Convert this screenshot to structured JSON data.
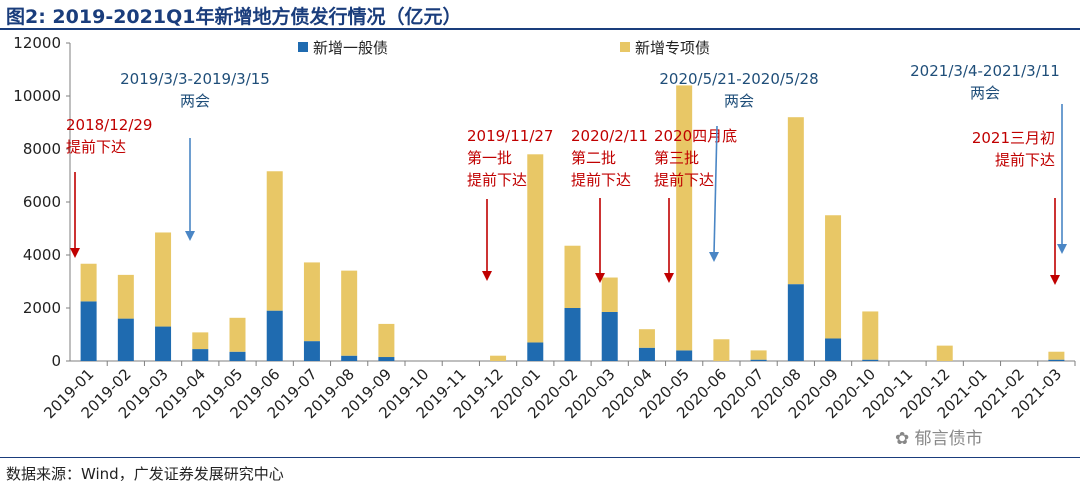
{
  "header": {
    "title": "图2:  2019-2021Q1年新增地方债发行情况（亿元）"
  },
  "footer": {
    "source": "数据来源：Wind，广发证券发展研究中心",
    "watermark": "郁言债市"
  },
  "colors": {
    "general": "#1f6bb0",
    "special": "#e8c766",
    "red": "#c00000",
    "blue": "#4a86c5"
  },
  "chart_data": {
    "type": "bar",
    "stacked": true,
    "title": "",
    "xlabel": "",
    "ylabel": "",
    "ylim": [
      0,
      12000
    ],
    "yticks": [
      0,
      2000,
      4000,
      6000,
      8000,
      10000,
      12000
    ],
    "categories": [
      "2019-01",
      "2019-02",
      "2019-03",
      "2019-04",
      "2019-05",
      "2019-06",
      "2019-07",
      "2019-08",
      "2019-09",
      "2019-10",
      "2019-11",
      "2019-12",
      "2020-01",
      "2020-02",
      "2020-03",
      "2020-04",
      "2020-05",
      "2020-06",
      "2020-07",
      "2020-08",
      "2020-09",
      "2020-10",
      "2020-11",
      "2020-12",
      "2021-01",
      "2021-02",
      "2021-03"
    ],
    "series": [
      {
        "name": "新增一般债",
        "values": [
          2250,
          1600,
          1300,
          450,
          350,
          1900,
          750,
          200,
          150,
          0,
          0,
          0,
          700,
          2000,
          1850,
          500,
          400,
          0,
          50,
          2900,
          850,
          50,
          0,
          0,
          0,
          0,
          50
        ]
      },
      {
        "name": "新增专项债",
        "values": [
          1420,
          1650,
          3550,
          630,
          1280,
          5260,
          2970,
          3210,
          1250,
          0,
          0,
          200,
          7100,
          2350,
          1300,
          700,
          10000,
          820,
          350,
          6300,
          4650,
          1820,
          0,
          580,
          0,
          0,
          300
        ]
      }
    ],
    "legend": [
      "新增一般债",
      "新增专项债"
    ],
    "annotations": [
      {
        "lines": [
          "2018/12/29",
          "提前下达"
        ],
        "color": "red",
        "target": "2019-01"
      },
      {
        "lines": [
          "2019/3/3-2019/3/15",
          "两会"
        ],
        "color": "blue",
        "target": "2019-03"
      },
      {
        "lines": [
          "2019/11/27",
          "第一批",
          "提前下达"
        ],
        "color": "red",
        "target": "2019-11"
      },
      {
        "lines": [
          "2020/2/11",
          "第二批",
          "提前下达"
        ],
        "color": "red",
        "target": "2020-03"
      },
      {
        "lines": [
          "2020四月底",
          "第三批",
          "提前下达"
        ],
        "color": "red",
        "target": "2020-05"
      },
      {
        "lines": [
          "2020/5/21-2020/5/28",
          "两会"
        ],
        "color": "blue",
        "target": "2020-06"
      },
      {
        "lines": [
          "2021/3/4-2021/3/11",
          "两会"
        ],
        "color": "blue",
        "target": "2021-03"
      },
      {
        "lines": [
          "2021三月初",
          "提前下达"
        ],
        "color": "red",
        "target": "2021-03"
      }
    ]
  }
}
